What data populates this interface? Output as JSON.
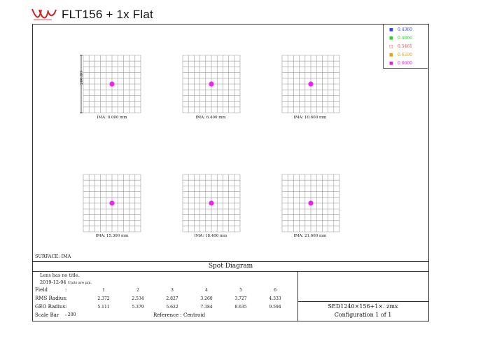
{
  "header": {
    "logo_icon": "brand-logo-icon",
    "title": "FLT156 + 1x Flat"
  },
  "legend": {
    "items": [
      {
        "label": "0.4360",
        "color": "#3344ff"
      },
      {
        "label": "0.4860",
        "color": "#33cc33"
      },
      {
        "label": "0.5461",
        "color": "#e05050"
      },
      {
        "label": "0.6200",
        "color": "#e0a020"
      },
      {
        "label": "0.6600",
        "color": "#dd22dd"
      }
    ]
  },
  "spots": [
    {
      "label": "IMA: 0.000 mm"
    },
    {
      "label": "IMA: 6.400 mm"
    },
    {
      "label": "IMA: 10.600 mm"
    },
    {
      "label": "IMA: 15.300 mm"
    },
    {
      "label": "IMA: 18.400 mm"
    },
    {
      "label": "IMA: 21.600 mm"
    }
  ],
  "scale_tag": "200.00",
  "surface_label": "SURFACE: IMA",
  "diagram_title": "Spot Diagram",
  "info": {
    "title_line": "Lens has no title.",
    "date": "2019-12-04",
    "units_note": "Units are µm.",
    "field_label": "Field",
    "field_colon": ":",
    "fields": [
      "1",
      "2",
      "3",
      "4",
      "5",
      "6"
    ],
    "rms_label": "RMS Radius",
    "rms_colon": ":",
    "rms": [
      "2.372",
      "2.534",
      "2.827",
      "3.260",
      "3.727",
      "4.333"
    ],
    "geo_label": "GEO Radius",
    "geo_colon": ":",
    "geo": [
      "5.111",
      "5.379",
      "5.622",
      "7.384",
      "8.635",
      "9.594"
    ],
    "scale_bar_label": "Scale Bar",
    "scale_bar_value": ": 200",
    "reference": "Reference   :   Centroid"
  },
  "file": {
    "name": "SED1240×156+1×. zmx",
    "configuration": "Configuration 1 of 1"
  },
  "colors": {
    "spot": "#ee22ee",
    "grid": "#9a9a9a"
  }
}
